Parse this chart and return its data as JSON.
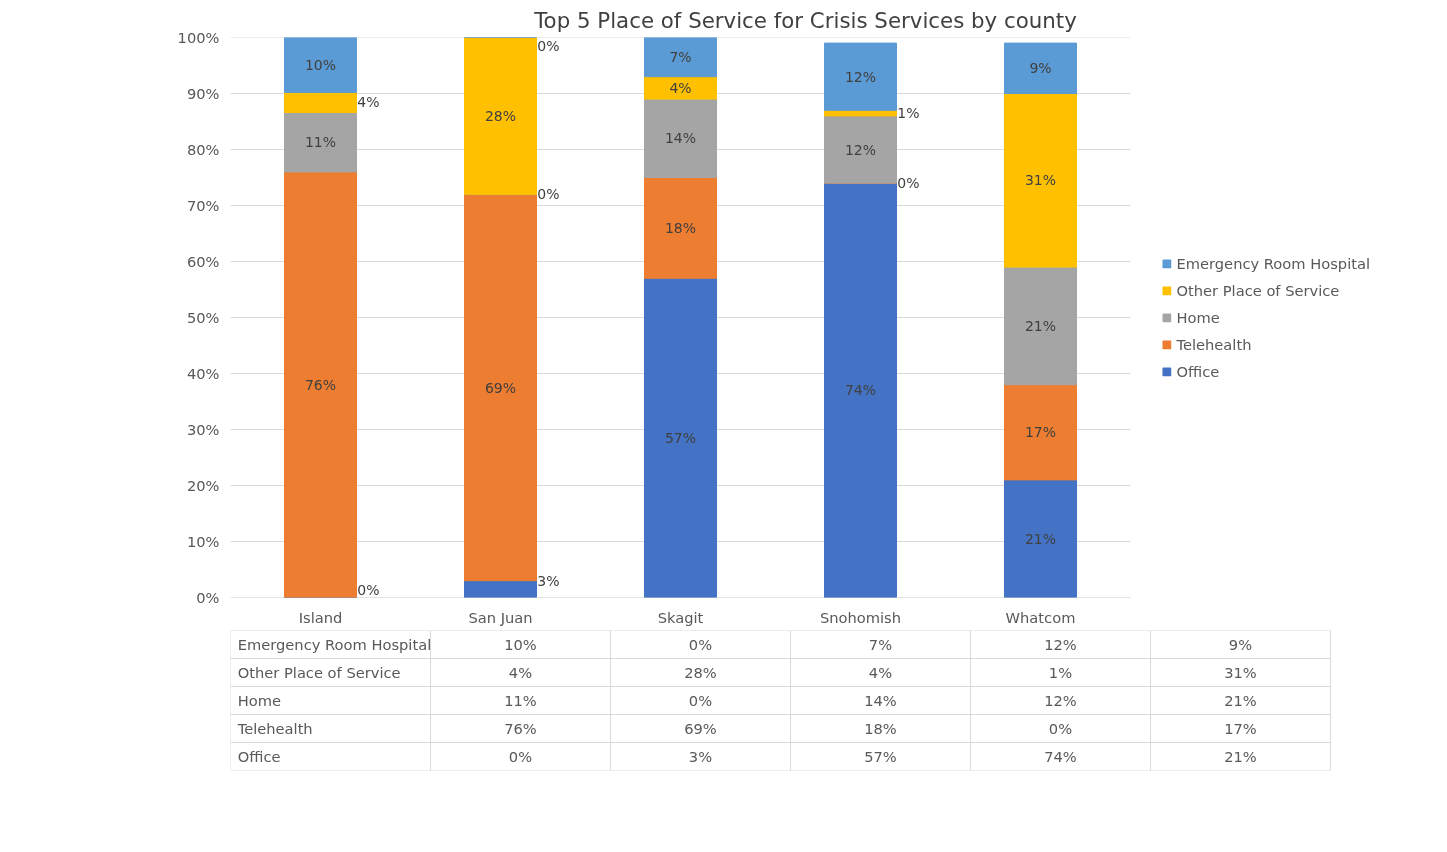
{
  "chart_data": {
    "type": "bar",
    "stacked": true,
    "title": "Top 5 Place of Service for Crisis Services by county",
    "categories": [
      "Island",
      "San Juan",
      "Skagit",
      "Snohomish",
      "Whatcom"
    ],
    "series": [
      {
        "name": "Office",
        "color": "#4472c4",
        "values": [
          0,
          3,
          57,
          74,
          21
        ],
        "value_labels": [
          "0%",
          "3%",
          "57%",
          "74%",
          "21%"
        ]
      },
      {
        "name": "Telehealth",
        "color": "#ed7d31",
        "values": [
          76,
          69,
          18,
          0,
          17
        ],
        "value_labels": [
          "76%",
          "69%",
          "18%",
          "0%",
          "17%"
        ]
      },
      {
        "name": "Home",
        "color": "#a5a5a5",
        "values": [
          10.6,
          0,
          14,
          12,
          21
        ],
        "value_labels": [
          "11%",
          "0%",
          "14%",
          "12%",
          "21%"
        ]
      },
      {
        "name": "Other Place of Service",
        "color": "#ffc000",
        "values": [
          3.6,
          28,
          4,
          1,
          31
        ],
        "value_labels": [
          "4%",
          "28%",
          "4%",
          "1%",
          "31%"
        ]
      },
      {
        "name": "Emergency Room Hospital",
        "color": "#5b9bd5",
        "values": [
          9.8,
          0,
          7,
          12,
          9
        ],
        "value_labels": [
          "10%",
          "0%",
          "7%",
          "12%",
          "9%"
        ]
      }
    ],
    "ylim": [
      0,
      100
    ],
    "yticks": [
      {
        "value": 0,
        "label": "0%"
      },
      {
        "value": 10,
        "label": "10%"
      },
      {
        "value": 20,
        "label": "20%"
      },
      {
        "value": 30,
        "label": "30%"
      },
      {
        "value": 40,
        "label": "40%"
      },
      {
        "value": 50,
        "label": "50%"
      },
      {
        "value": 60,
        "label": "60%"
      },
      {
        "value": 70,
        "label": "70%"
      },
      {
        "value": 80,
        "label": "80%"
      },
      {
        "value": 90,
        "label": "90%"
      },
      {
        "value": 100,
        "label": "100%"
      }
    ],
    "grid": "y",
    "legend": "right"
  }
}
